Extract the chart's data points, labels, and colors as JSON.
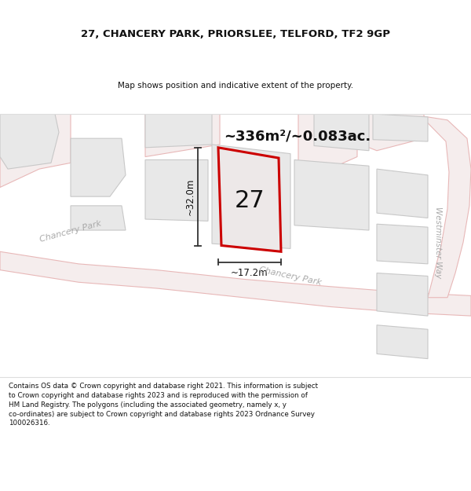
{
  "title_line1": "27, CHANCERY PARK, PRIORSLEE, TELFORD, TF2 9GP",
  "title_line2": "Map shows position and indicative extent of the property.",
  "area_text": "~336m²/~0.083ac.",
  "number_label": "27",
  "dim_vertical": "~32.0m",
  "dim_horizontal": "~17.2m",
  "road_label_left": "Chancery Park",
  "road_label_mid": "Chancery Park",
  "road_label_right": "Westminster Way",
  "footer_text": "Contains OS data © Crown copyright and database right 2021. This information is subject to Crown copyright and database rights 2023 and is reproduced with the permission of HM Land Registry. The polygons (including the associated geometry, namely x, y co-ordinates) are subject to Crown copyright and database rights 2023 Ordnance Survey 100026316.",
  "map_bg": "#ffffff",
  "road_fill": "#f5eded",
  "road_edge": "#e8b8b8",
  "road_line_color": "#d0c0c0",
  "plot_fill": "#ede8e8",
  "plot_stroke": "#cc0000",
  "block_fill": "#e8e8e8",
  "block_edge": "#c8c8c8",
  "footer_bg": "#ffffff",
  "title_bg": "#ffffff",
  "dim_color": "#333333",
  "text_dark": "#111111",
  "text_road": "#aaaaaa",
  "sep_line": "#dddddd"
}
